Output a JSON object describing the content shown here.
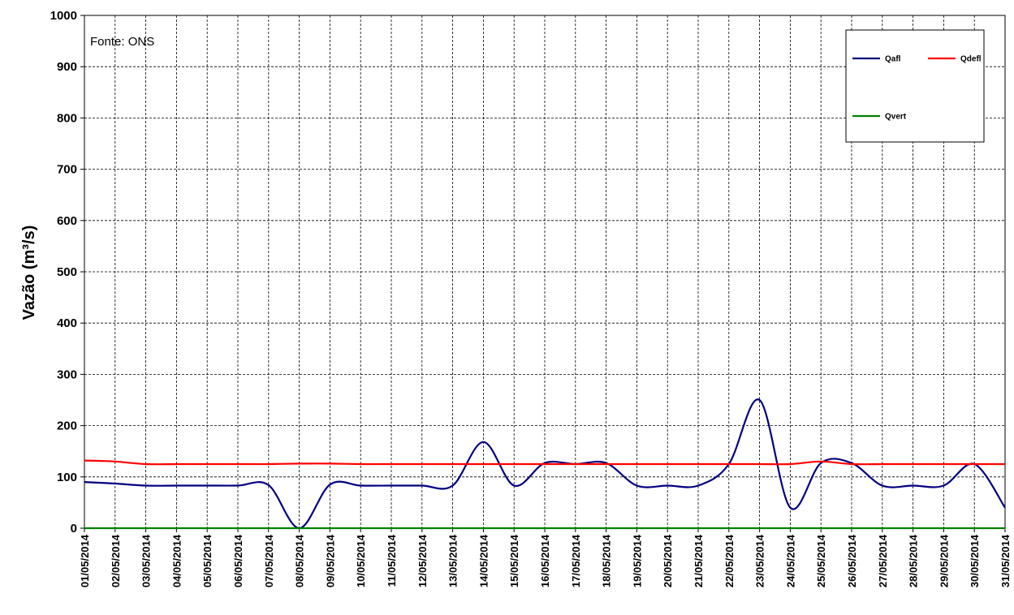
{
  "chart_data": {
    "type": "line",
    "annotation": "Fonte: ONS",
    "ylabel": "Vazão (m³/s)",
    "ylim": [
      0,
      1000
    ],
    "yticks": [
      "0",
      "100",
      "200",
      "300",
      "400",
      "500",
      "600",
      "700",
      "800",
      "900",
      "1000"
    ],
    "grid": true,
    "legend_position": "top-right",
    "categories": [
      "01/05/2014",
      "02/05/2014",
      "03/05/2014",
      "04/05/2014",
      "05/05/2014",
      "06/05/2014",
      "07/05/2014",
      "08/05/2014",
      "09/05/2014",
      "10/05/2014",
      "11/05/2014",
      "12/05/2014",
      "13/05/2014",
      "14/05/2014",
      "15/05/2014",
      "16/05/2014",
      "17/05/2014",
      "18/05/2014",
      "19/05/2014",
      "20/05/2014",
      "21/05/2014",
      "22/05/2014",
      "23/05/2014",
      "24/05/2014",
      "25/05/2014",
      "26/05/2014",
      "27/05/2014",
      "28/05/2014",
      "29/05/2014",
      "30/05/2014",
      "31/05/2014"
    ],
    "series": [
      {
        "name": "Qafl",
        "color": "#000080",
        "values": [
          90,
          87,
          83,
          83,
          83,
          83,
          84,
          0,
          85,
          83,
          83,
          83,
          83,
          168,
          83,
          127,
          125,
          127,
          83,
          83,
          83,
          125,
          250,
          40,
          127,
          127,
          83,
          83,
          83,
          125,
          40
        ]
      },
      {
        "name": "Qdefl",
        "color": "#ff0000",
        "values": [
          132,
          130,
          125,
          125,
          125,
          125,
          125,
          126,
          126,
          125,
          125,
          125,
          125,
          125,
          125,
          125,
          125,
          125,
          125,
          125,
          125,
          125,
          125,
          125,
          130,
          125,
          125,
          125,
          125,
          125,
          125
        ]
      },
      {
        "name": "Qvert",
        "color": "#008000",
        "values": [
          0,
          0,
          0,
          0,
          0,
          0,
          0,
          0,
          0,
          0,
          0,
          0,
          0,
          0,
          0,
          0,
          0,
          0,
          0,
          0,
          0,
          0,
          0,
          0,
          0,
          0,
          0,
          0,
          0,
          0,
          0
        ]
      }
    ]
  }
}
